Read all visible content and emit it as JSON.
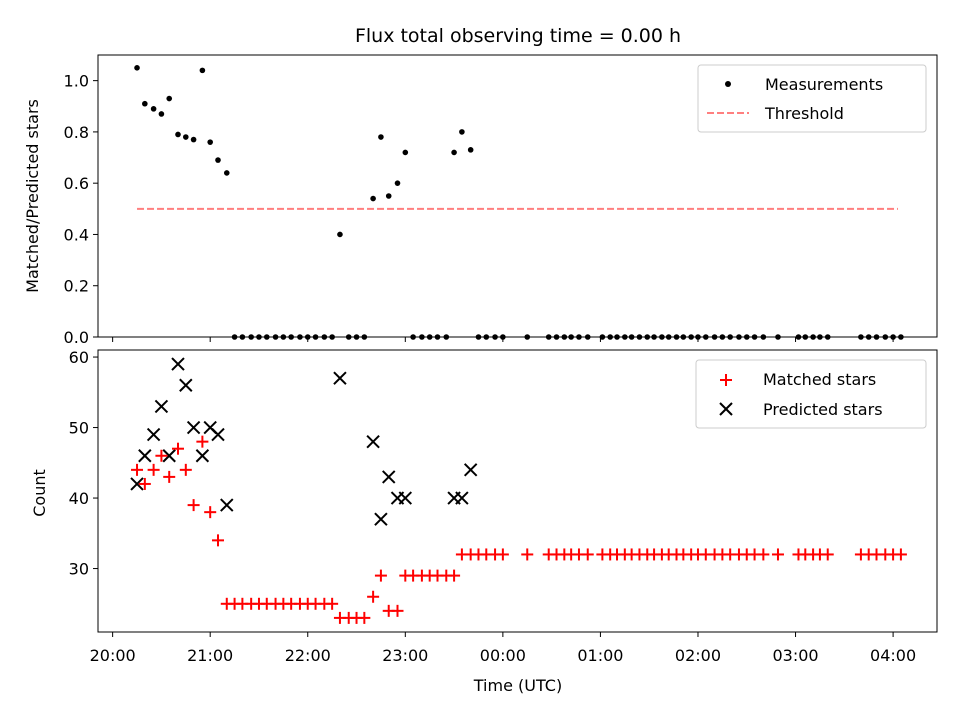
{
  "chart_data": [
    {
      "type": "scatter",
      "title": "Flux total observing time = 0.00 h",
      "xlabel": "",
      "ylabel": "Matched/Predicted stars",
      "xlim": [
        -0.15,
        8.45
      ],
      "ylim": [
        0.0,
        1.1
      ],
      "yticks": [
        0.0,
        0.2,
        0.4,
        0.6,
        0.8,
        1.0
      ],
      "ytick_labels": [
        "0.0",
        "0.2",
        "0.4",
        "0.6",
        "0.8",
        "1.0"
      ],
      "x_unit": "hours since 20:00 UTC",
      "legend_position": "upper right",
      "series": [
        {
          "name": "Measurements",
          "kind": "points",
          "color": "#000000",
          "x": [
            0.25,
            0.33,
            0.42,
            0.5,
            0.58,
            0.67,
            0.75,
            0.83,
            0.92,
            1.0,
            1.08,
            1.17,
            1.25,
            1.33,
            1.42,
            1.5,
            1.58,
            1.67,
            1.75,
            1.83,
            1.92,
            2.0,
            2.08,
            2.17,
            2.25,
            2.33,
            2.42,
            2.5,
            2.58,
            2.67,
            2.75,
            2.83,
            2.92,
            3.0,
            3.08,
            3.17,
            3.25,
            3.33,
            3.42,
            3.5,
            3.58,
            3.67,
            3.75,
            3.83,
            3.92,
            4.0,
            4.25,
            4.47,
            4.55,
            4.63,
            4.7,
            4.78,
            4.87,
            5.02,
            5.1,
            5.17,
            5.25,
            5.32,
            5.4,
            5.48,
            5.55,
            5.63,
            5.7,
            5.78,
            5.85,
            5.93,
            6.0,
            6.08,
            6.17,
            6.25,
            6.33,
            6.42,
            6.5,
            6.58,
            6.67,
            6.82,
            7.03,
            7.1,
            7.18,
            7.25,
            7.33,
            7.67,
            7.75,
            7.83,
            7.92,
            8.0,
            8.08
          ],
          "y": [
            1.05,
            0.91,
            0.89,
            0.87,
            0.93,
            0.79,
            0.78,
            0.77,
            1.04,
            0.76,
            0.69,
            0.64,
            0.0,
            0.0,
            0.0,
            0.0,
            0.0,
            0.0,
            0.0,
            0.0,
            0.0,
            0.0,
            0.0,
            0.0,
            0.0,
            0.4,
            0.0,
            0.0,
            0.0,
            0.54,
            0.78,
            0.55,
            0.6,
            0.72,
            0.0,
            0.0,
            0.0,
            0.0,
            0.0,
            0.72,
            0.8,
            0.73,
            0.0,
            0.0,
            0.0,
            0.0,
            0.0,
            0.0,
            0.0,
            0.0,
            0.0,
            0.0,
            0.0,
            0.0,
            0.0,
            0.0,
            0.0,
            0.0,
            0.0,
            0.0,
            0.0,
            0.0,
            0.0,
            0.0,
            0.0,
            0.0,
            0.0,
            0.0,
            0.0,
            0.0,
            0.0,
            0.0,
            0.0,
            0.0,
            0.0,
            0.0,
            0.0,
            0.0,
            0.0,
            0.0,
            0.0,
            0.0,
            0.0,
            0.0,
            0.0,
            0.0,
            0.0
          ]
        },
        {
          "name": "Threshold",
          "kind": "dashed-line",
          "color": "#ff7f7f",
          "x": [
            0.25,
            8.05
          ],
          "y": [
            0.5,
            0.5
          ]
        }
      ]
    },
    {
      "type": "scatter",
      "title": "",
      "xlabel": "Time (UTC)",
      "ylabel": "Count",
      "xlim": [
        -0.15,
        8.45
      ],
      "ylim": [
        21.0,
        61.0
      ],
      "yticks": [
        30,
        40,
        50,
        60
      ],
      "ytick_labels": [
        "30",
        "40",
        "50",
        "60"
      ],
      "xticks": [
        0,
        1,
        2,
        3,
        4,
        5,
        6,
        7,
        8
      ],
      "xtick_labels": [
        "20:00",
        "21:00",
        "22:00",
        "23:00",
        "00:00",
        "01:00",
        "02:00",
        "03:00",
        "04:00"
      ],
      "x_unit": "hours since 20:00 UTC",
      "legend_position": "upper right",
      "series": [
        {
          "name": "Matched stars",
          "marker": "+",
          "color": "#ff0000",
          "x": [
            0.25,
            0.33,
            0.42,
            0.5,
            0.58,
            0.67,
            0.75,
            0.83,
            0.92,
            1.0,
            1.08,
            1.17,
            1.25,
            1.33,
            1.42,
            1.5,
            1.58,
            1.67,
            1.75,
            1.83,
            1.92,
            2.0,
            2.08,
            2.17,
            2.25,
            2.33,
            2.42,
            2.5,
            2.58,
            2.67,
            2.75,
            2.83,
            2.92,
            3.0,
            3.08,
            3.17,
            3.25,
            3.33,
            3.42,
            3.5,
            3.58,
            3.67,
            3.75,
            3.83,
            3.92,
            4.0,
            4.25,
            4.47,
            4.55,
            4.63,
            4.7,
            4.78,
            4.87,
            5.02,
            5.1,
            5.17,
            5.25,
            5.32,
            5.4,
            5.48,
            5.55,
            5.63,
            5.7,
            5.78,
            5.85,
            5.93,
            6.0,
            6.08,
            6.17,
            6.25,
            6.33,
            6.42,
            6.5,
            6.58,
            6.67,
            6.82,
            7.03,
            7.1,
            7.18,
            7.25,
            7.33,
            7.67,
            7.75,
            7.83,
            7.92,
            8.0,
            8.08
          ],
          "y": [
            44,
            42,
            44,
            46,
            43,
            47,
            44,
            39,
            48,
            38,
            34,
            25,
            25,
            25,
            25,
            25,
            25,
            25,
            25,
            25,
            25,
            25,
            25,
            25,
            25,
            23,
            23,
            23,
            23,
            26,
            29,
            24,
            24,
            29,
            29,
            29,
            29,
            29,
            29,
            29,
            32,
            32,
            32,
            32,
            32,
            32,
            32,
            32,
            32,
            32,
            32,
            32,
            32,
            32,
            32,
            32,
            32,
            32,
            32,
            32,
            32,
            32,
            32,
            32,
            32,
            32,
            32,
            32,
            32,
            32,
            32,
            32,
            32,
            32,
            32,
            32,
            32,
            32,
            32,
            32,
            32,
            32,
            32,
            32,
            32,
            32,
            32
          ]
        },
        {
          "name": "Predicted stars",
          "marker": "x",
          "color": "#000000",
          "x": [
            0.25,
            0.33,
            0.42,
            0.5,
            0.58,
            0.67,
            0.75,
            0.83,
            0.92,
            1.0,
            1.08,
            1.17,
            2.33,
            2.67,
            2.75,
            2.83,
            2.92,
            3.0,
            3.5,
            3.58,
            3.67
          ],
          "y": [
            42,
            46,
            49,
            53,
            46,
            59,
            56,
            50,
            46,
            50,
            49,
            39,
            57,
            48,
            37,
            43,
            40,
            40,
            40,
            40,
            44
          ]
        }
      ]
    }
  ]
}
